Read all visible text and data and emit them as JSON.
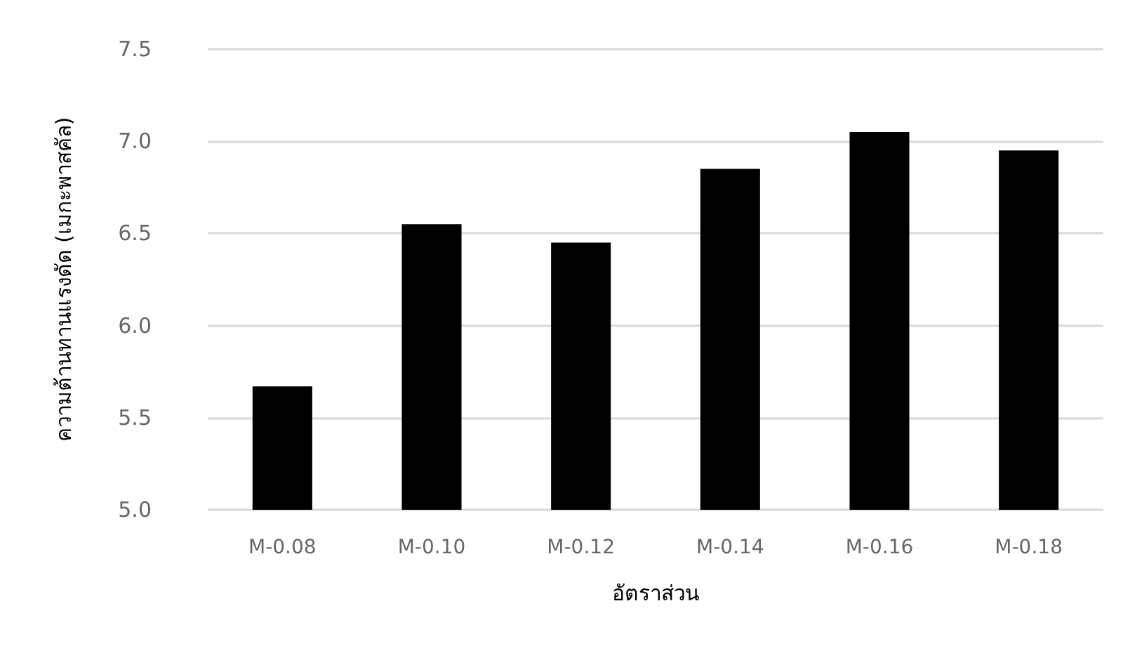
{
  "chart_data": {
    "type": "bar",
    "xlabel": "อัตราส่วน",
    "ylabel": "ความต้านทานแรงดัด (เมกะพาสคัล)",
    "categories": [
      "M-0.08",
      "M-0.10",
      "M-0.12",
      "M-0.14",
      "M-0.16",
      "M-0.18"
    ],
    "values": [
      5.67,
      6.55,
      6.45,
      6.85,
      7.05,
      6.95
    ],
    "color": "#000000",
    "ylim": [
      5.0,
      7.5
    ],
    "yticks": [
      {
        "value": 5.0,
        "label": "5.0"
      },
      {
        "value": 5.5,
        "label": "5.5"
      },
      {
        "value": 6.0,
        "label": "6.0"
      },
      {
        "value": 6.5,
        "label": "6.5"
      },
      {
        "value": 7.0,
        "label": "7.0"
      },
      {
        "value": 7.5,
        "label": "7.5"
      }
    ],
    "grid": "y"
  }
}
